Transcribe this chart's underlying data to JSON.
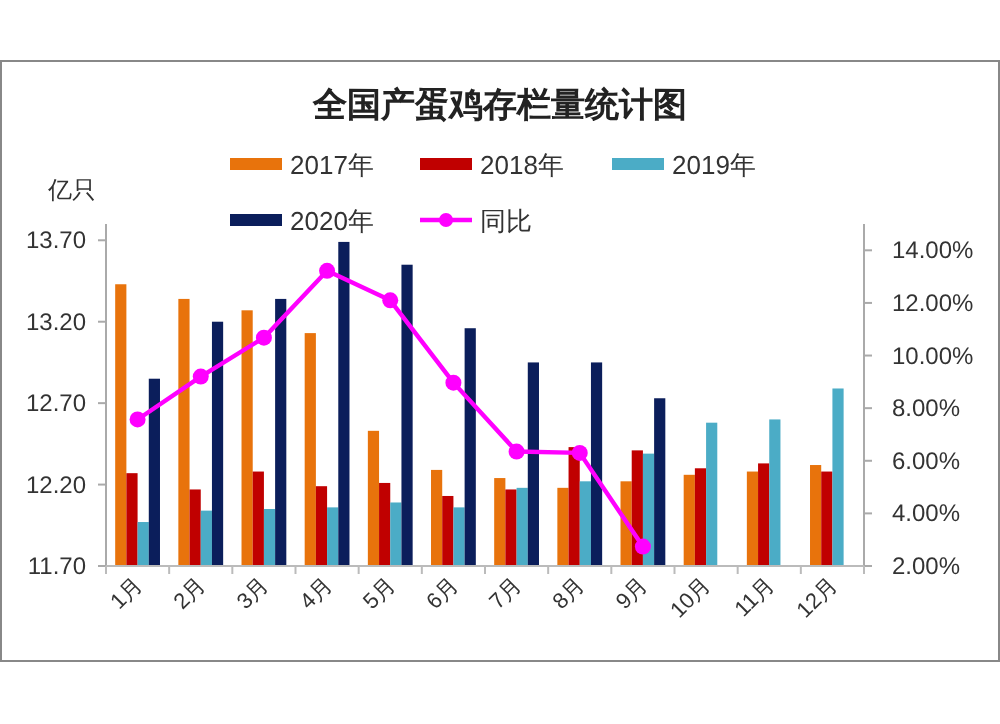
{
  "chart_data": {
    "type": "bar",
    "title": "全国产蛋鸡存栏量统计图",
    "ylabel": "亿只",
    "categories": [
      "1月",
      "2月",
      "3月",
      "4月",
      "5月",
      "6月",
      "7月",
      "8月",
      "9月",
      "10月",
      "11月",
      "12月"
    ],
    "series": [
      {
        "name": "2017年",
        "color": "#e8730c",
        "values": [
          13.43,
          13.34,
          13.27,
          13.13,
          12.53,
          12.29,
          12.24,
          12.18,
          12.22,
          12.26,
          12.28,
          12.32
        ]
      },
      {
        "name": "2018年",
        "color": "#c00000",
        "values": [
          12.27,
          12.17,
          12.28,
          12.19,
          12.21,
          12.13,
          12.17,
          12.43,
          12.41,
          12.3,
          12.33,
          12.28
        ]
      },
      {
        "name": "2019年",
        "color": "#4bacc6",
        "values": [
          11.97,
          12.04,
          12.05,
          12.06,
          12.09,
          12.06,
          12.18,
          12.22,
          12.39,
          12.58,
          12.6,
          12.79
        ]
      },
      {
        "name": "2020年",
        "color": "#0b1e5b",
        "values": [
          12.85,
          13.2,
          13.34,
          13.69,
          13.55,
          13.16,
          12.95,
          12.95,
          12.73,
          null,
          null,
          null
        ]
      },
      {
        "name": "同比",
        "type": "line",
        "axis": "y2",
        "color": "#ff00ff",
        "marker": "circle",
        "values": [
          7.57,
          9.2,
          10.68,
          13.22,
          12.1,
          8.97,
          6.35,
          6.3,
          2.74,
          null,
          null,
          null
        ]
      }
    ],
    "ylim": [
      11.7,
      13.8
    ],
    "yticks": [
      {
        "value": 11.7,
        "label": "11.70"
      },
      {
        "value": 12.2,
        "label": "12.20"
      },
      {
        "value": 12.7,
        "label": "12.70"
      },
      {
        "value": 13.2,
        "label": "13.20"
      },
      {
        "value": 13.7,
        "label": "13.70"
      }
    ],
    "y2lim": [
      2,
      15
    ],
    "y2ticks": [
      {
        "value": 2,
        "label": "2.00%"
      },
      {
        "value": 4,
        "label": "4.00%"
      },
      {
        "value": 6,
        "label": "6.00%"
      },
      {
        "value": 8,
        "label": "8.00%"
      },
      {
        "value": 10,
        "label": "10.00%"
      },
      {
        "value": 12,
        "label": "12.00%"
      },
      {
        "value": 14,
        "label": "14.00%"
      }
    ],
    "legend": "top",
    "grid": false
  }
}
